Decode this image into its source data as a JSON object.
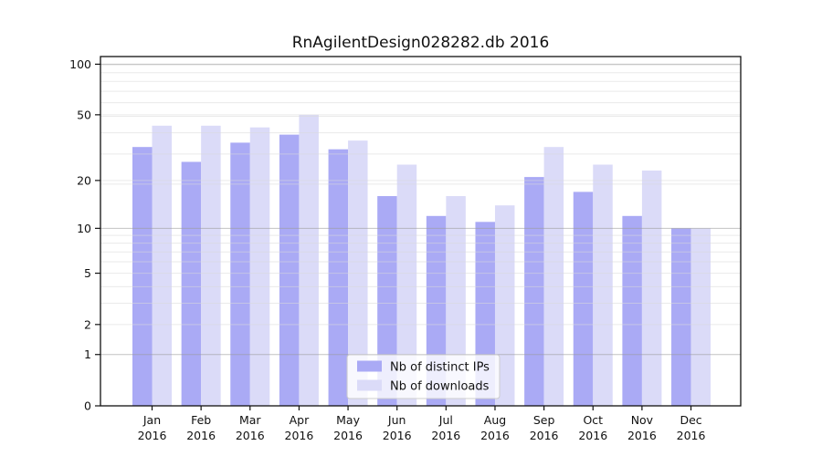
{
  "title": "RnAgilentDesign028282.db 2016",
  "chart_data": {
    "type": "bar",
    "title": "RnAgilentDesign028282.db 2016",
    "x_months": [
      "Jan",
      "Feb",
      "Mar",
      "Apr",
      "May",
      "Jun",
      "Jul",
      "Aug",
      "Sep",
      "Oct",
      "Nov",
      "Dec"
    ],
    "x_year_line": "2016",
    "series": [
      {
        "name": "Nb of distinct IPs",
        "color": "#aaaaf5",
        "values": [
          32,
          26,
          34,
          38,
          31,
          16,
          12,
          11,
          21,
          17,
          12,
          10
        ]
      },
      {
        "name": "Nb of downloads",
        "color": "#dbdbf8",
        "values": [
          43,
          43,
          42,
          50,
          35,
          25,
          16,
          14,
          32,
          25,
          23,
          10
        ]
      }
    ],
    "y_scale": "log10(value+1)",
    "y_tick_labels": [
      "100",
      "50",
      "20",
      "10",
      "5",
      "2",
      "1",
      "0"
    ],
    "y_tick_values": [
      100,
      50,
      20,
      10,
      5,
      2,
      1,
      0
    ],
    "ylim": [
      0,
      111
    ],
    "grid": true,
    "grid_minor_u": [
      3,
      4,
      5,
      6,
      7,
      8,
      9,
      10,
      20,
      21,
      30,
      40,
      50,
      51,
      60,
      70,
      80,
      90,
      100
    ],
    "grid_major_v": [
      1,
      10,
      100
    ],
    "legend": {
      "entries": [
        "Nb of distinct IPs",
        "Nb of downloads"
      ],
      "position": "bottom-center"
    },
    "colors": {
      "axis": "#111111",
      "grid_minor": "#d9d9d9",
      "grid_major": "#9a9a9a",
      "legend_border": "#cccccc"
    }
  }
}
